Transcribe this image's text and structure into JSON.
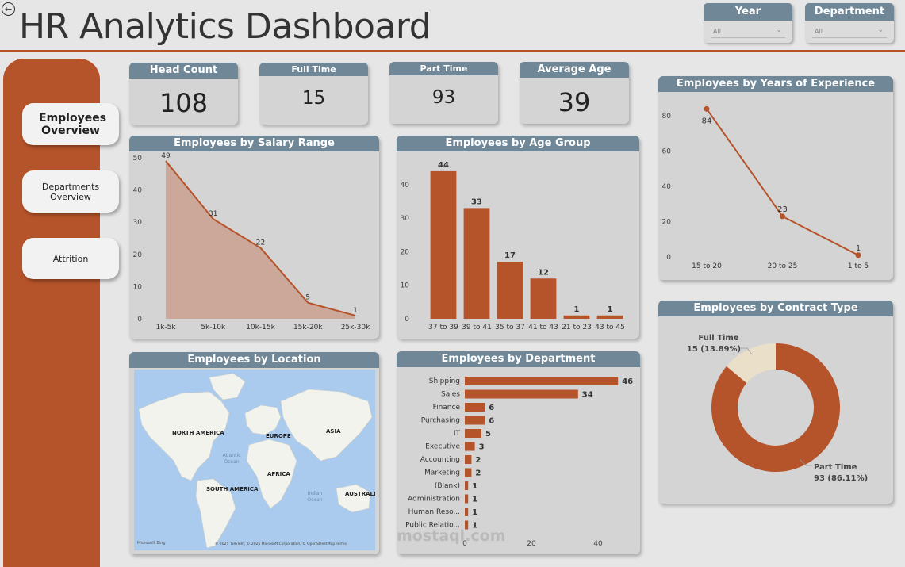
{
  "header": {
    "title": "HR Analytics Dashboard",
    "back_icon": "back-arrow-icon"
  },
  "filters": [
    {
      "label": "Year",
      "value": "All"
    },
    {
      "label": "Department",
      "value": "All"
    }
  ],
  "nav": [
    {
      "label": "Employees Overview",
      "active": true
    },
    {
      "label": "Departments Overview",
      "active": false
    },
    {
      "label": "Attrition",
      "active": false
    }
  ],
  "kpis": [
    {
      "label": "Head Count",
      "value": "108"
    },
    {
      "label": "Full Time",
      "value": "15"
    },
    {
      "label": "Part Time",
      "value": "93"
    },
    {
      "label": "Average Age",
      "value": "39"
    }
  ],
  "map": {
    "title": "Employees by Location",
    "labels": [
      "NORTH AMERICA",
      "EUROPE",
      "ASIA",
      "Atlantic Ocean",
      "AFRICA",
      "SOUTH AMERICA",
      "Indian Ocean",
      "AUSTRALIA"
    ],
    "attribution": "© 2025 TomTom, © 2025 Microsoft Corporation, © OpenStreetMap  Terms",
    "brand": "Microsoft Bing"
  },
  "watermark": "mostaql.com",
  "colors": {
    "accent": "#b5532a",
    "header": "#6f8797",
    "card": "#d4d4d4",
    "fill": "#c9a08f",
    "donut_light": "#eadfc8"
  },
  "chart_data": [
    {
      "type": "area",
      "title": "Employees by Salary Range",
      "categories": [
        "1k-5k",
        "5k-10k",
        "10k-15k",
        "15k-20k",
        "25k-30k"
      ],
      "values": [
        49,
        31,
        22,
        5,
        1
      ],
      "ylim": [
        0,
        50
      ],
      "yticks": [
        0,
        10,
        20,
        30,
        40,
        50
      ]
    },
    {
      "type": "bar",
      "title": "Employees by Age Group",
      "categories": [
        "37 to 39",
        "39 to 41",
        "35 to 37",
        "41 to 43",
        "21 to 23",
        "43 to 45"
      ],
      "values": [
        44,
        33,
        17,
        12,
        1,
        1
      ],
      "ylim": [
        0,
        48
      ],
      "yticks": [
        0,
        10,
        20,
        30,
        40
      ]
    },
    {
      "type": "line",
      "title": "Employees by Years of Experience",
      "categories": [
        "15 to 20",
        "20 to 25",
        "1 to 5"
      ],
      "values": [
        84,
        23,
        1
      ],
      "ylim": [
        0,
        90
      ],
      "yticks": [
        0,
        20,
        40,
        60,
        80
      ]
    },
    {
      "type": "bar",
      "orientation": "horizontal",
      "title": "Employees by Department",
      "categories": [
        "Shipping",
        "Sales",
        "Finance",
        "Purchasing",
        "IT",
        "Executive",
        "Accounting",
        "Marketing",
        "(Blank)",
        "Administration",
        "Human Reso...",
        "Public Relatio..."
      ],
      "values": [
        46,
        34,
        6,
        6,
        5,
        3,
        2,
        2,
        1,
        1,
        1,
        1
      ],
      "xlim": [
        0,
        50
      ],
      "xticks": [
        0,
        20,
        40
      ]
    },
    {
      "type": "pie",
      "title": "Employees by Contract Type",
      "categories": [
        "Full Time",
        "Part Time"
      ],
      "values": [
        15,
        93
      ],
      "labels": [
        "15 (13.89%)",
        "93 (86.11%)"
      ]
    }
  ]
}
